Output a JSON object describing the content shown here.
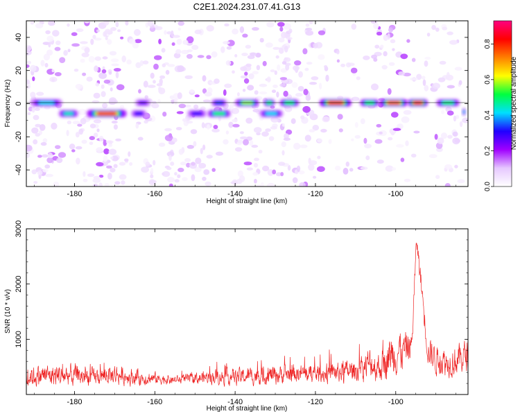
{
  "figure": {
    "title": "C2E1.2024.231.07.41.G13"
  },
  "chart_data": [
    {
      "type": "heatmap",
      "xlabel": "Height of straight line (km)",
      "ylabel": "Frequency (Hz)",
      "xlim": [
        -192,
        -82
      ],
      "ylim": [
        -50,
        50
      ],
      "xticks": [
        -180,
        -160,
        -140,
        -120,
        -100
      ],
      "yticks": [
        -40,
        -20,
        0,
        20,
        40
      ],
      "colorbar": {
        "label": "Normalized spectral amplitude",
        "range": [
          0,
          0.93
        ],
        "ticks": [
          0.0,
          0.2,
          0.4,
          0.6,
          0.8
        ],
        "colors": [
          "#ffffff",
          "#e6c8ff",
          "#a000ff",
          "#2000ff",
          "#00e0ff",
          "#00ff40",
          "#ffff00",
          "#ff8000",
          "#ff0000",
          "#ff0080"
        ]
      },
      "ridges": [
        {
          "x_start": -191,
          "x_end": -183,
          "y": 0.5,
          "amp": 0.42
        },
        {
          "x_start": -184,
          "x_end": -179,
          "y": -6,
          "amp": 0.45
        },
        {
          "x_start": -177,
          "x_end": -167,
          "y": -6,
          "amp": 0.82
        },
        {
          "x_start": -166,
          "x_end": -162,
          "y": -6,
          "amp": 0.3
        },
        {
          "x_start": -165,
          "x_end": -161,
          "y": 0.5,
          "amp": 0.25
        },
        {
          "x_start": -152,
          "x_end": -147,
          "y": -6,
          "amp": 0.3
        },
        {
          "x_start": -147,
          "x_end": -141,
          "y": -6,
          "amp": 0.5
        },
        {
          "x_start": -146,
          "x_end": -142,
          "y": 0.5,
          "amp": 0.35
        },
        {
          "x_start": -140,
          "x_end": -134,
          "y": 0.5,
          "amp": 0.58
        },
        {
          "x_start": -134,
          "x_end": -128,
          "y": -6,
          "amp": 0.42
        },
        {
          "x_start": -133,
          "x_end": -130,
          "y": 0.5,
          "amp": 0.5
        },
        {
          "x_start": -129,
          "x_end": -124,
          "y": 0.5,
          "amp": 0.5
        },
        {
          "x_start": -119,
          "x_end": -111,
          "y": 0.5,
          "amp": 0.85
        },
        {
          "x_start": -109,
          "x_end": -104,
          "y": 0.5,
          "amp": 0.5
        },
        {
          "x_start": -104,
          "x_end": -97,
          "y": 0.5,
          "amp": 0.78
        },
        {
          "x_start": -97,
          "x_end": -92,
          "y": 0.5,
          "amp": 0.88
        },
        {
          "x_start": -90,
          "x_end": -84,
          "y": 0.5,
          "amp": 0.5
        },
        {
          "x_start": -83.5,
          "x_end": -82.5,
          "y": -5,
          "amp": 0.42
        }
      ]
    },
    {
      "type": "line",
      "xlabel": "Height of straight line (km)",
      "ylabel": "SNR (10 * v/v)",
      "xlim": [
        -192,
        -82
      ],
      "ylim": [
        0,
        3000
      ],
      "xticks": [
        -180,
        -160,
        -140,
        -120,
        -100
      ],
      "yticks": [
        1000,
        2000,
        3000
      ],
      "series": [
        {
          "color": "#ee2222",
          "envelope": [
            {
              "x": -192,
              "mean": 330,
              "spread": 300
            },
            {
              "x": -185,
              "mean": 350,
              "spread": 320
            },
            {
              "x": -180,
              "mean": 340,
              "spread": 330
            },
            {
              "x": -175,
              "mean": 320,
              "spread": 230
            },
            {
              "x": -170,
              "mean": 360,
              "spread": 300
            },
            {
              "x": -165,
              "mean": 310,
              "spread": 220
            },
            {
              "x": -160,
              "mean": 290,
              "spread": 180
            },
            {
              "x": -155,
              "mean": 260,
              "spread": 120
            },
            {
              "x": -150,
              "mean": 290,
              "spread": 170
            },
            {
              "x": -145,
              "mean": 330,
              "spread": 220
            },
            {
              "x": -140,
              "mean": 320,
              "spread": 240
            },
            {
              "x": -135,
              "mean": 340,
              "spread": 260
            },
            {
              "x": -130,
              "mean": 360,
              "spread": 280
            },
            {
              "x": -125,
              "mean": 380,
              "spread": 270
            },
            {
              "x": -120,
              "mean": 370,
              "spread": 260
            },
            {
              "x": -115,
              "mean": 400,
              "spread": 300
            },
            {
              "x": -110,
              "mean": 430,
              "spread": 320
            },
            {
              "x": -106,
              "mean": 560,
              "spread": 500
            },
            {
              "x": -104,
              "mean": 480,
              "spread": 400
            },
            {
              "x": -101,
              "mean": 750,
              "spread": 650
            },
            {
              "x": -98,
              "mean": 800,
              "spread": 550
            },
            {
              "x": -96,
              "mean": 900,
              "spread": 400
            },
            {
              "x": -94.8,
              "mean": 2800,
              "spread": 250
            },
            {
              "x": -93.5,
              "mean": 1900,
              "spread": 350
            },
            {
              "x": -92,
              "mean": 800,
              "spread": 400
            },
            {
              "x": -90,
              "mean": 650,
              "spread": 450
            },
            {
              "x": -87,
              "mean": 580,
              "spread": 400
            },
            {
              "x": -84,
              "mean": 650,
              "spread": 480
            },
            {
              "x": -82,
              "mean": 720,
              "spread": 450
            }
          ]
        }
      ]
    }
  ]
}
